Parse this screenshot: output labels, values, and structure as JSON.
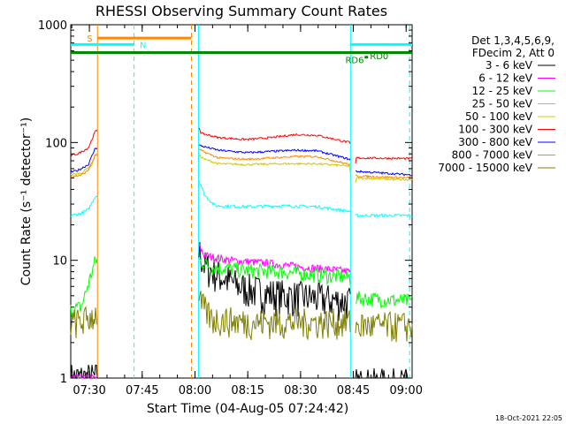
{
  "chart_data": {
    "type": "line",
    "title": "RHESSI Observing Summary Count Rates",
    "xlabel": "Start Time (04-Aug-05 07:24:42)",
    "ylabel": "Count Rate (s⁻¹ detector⁻¹)",
    "yscale": "log",
    "ylim": [
      1,
      1000
    ],
    "xlim_minutes": [
      0,
      97
    ],
    "x_tick_labels": [
      "07:30",
      "07:45",
      "08:00",
      "08:15",
      "08:30",
      "08:45",
      "09:00"
    ],
    "x_tick_minutes": [
      5.3,
      20.3,
      35.3,
      50.3,
      65.3,
      80.3,
      95.3
    ],
    "y_tick_labels": [
      "1",
      "10",
      "100",
      "1000"
    ],
    "y_tick_values": [
      1,
      10,
      100,
      1000
    ],
    "legend_header": [
      "Det 1,3,4,5,6,9,",
      "FDecim 2, Att 0"
    ],
    "timestamp": "18-Oct-2021 22:05",
    "flags": [
      {
        "label": "S",
        "color": "#ff8800",
        "start": 7.6,
        "end": 34.3,
        "level": 770
      },
      {
        "label": "N",
        "color": "#00ffff",
        "start": 0,
        "end": 18.0,
        "level": 680
      },
      {
        "label": "",
        "color": "#00ffff",
        "start": 79.5,
        "end": 97,
        "level": 680
      },
      {
        "label": "RD6",
        "color": "#008800",
        "start": 0,
        "end": 97,
        "level": 580
      },
      {
        "label": "RD0",
        "color": "#008800",
        "start": 83.5,
        "end": 84.5,
        "level": 530
      }
    ],
    "vertical_lines": [
      {
        "minute": 7.6,
        "color": "#ff8800",
        "style": "solid"
      },
      {
        "minute": 18.0,
        "color": "#00ffff",
        "style": "dashed"
      },
      {
        "minute": 34.3,
        "color": "#ff8800",
        "style": "dashed"
      },
      {
        "minute": 36.3,
        "color": "#00ffff",
        "style": "solid"
      },
      {
        "minute": 79.5,
        "color": "#00ffff",
        "style": "solid"
      },
      {
        "minute": 96.3,
        "color": "#00ffff",
        "style": "dashed"
      }
    ],
    "gaps": [
      [
        7.6,
        36.3
      ],
      [
        79.5,
        80.8
      ]
    ],
    "series": [
      {
        "name": "3 - 6 keV",
        "color": "#000000",
        "points": [
          [
            0,
            1
          ],
          [
            1,
            1
          ],
          [
            7.5,
            1
          ],
          [
            36.5,
            12
          ],
          [
            38,
            9
          ],
          [
            42,
            7.5
          ],
          [
            48,
            6
          ],
          [
            55,
            5.3
          ],
          [
            62,
            5
          ],
          [
            70,
            4.8
          ],
          [
            75,
            4.6
          ],
          [
            79.3,
            4.5
          ],
          [
            80.9,
            0.9
          ],
          [
            97,
            0.9
          ]
        ],
        "noise": 0.35
      },
      {
        "name": "6 - 12 keV",
        "color": "#ff00ff",
        "points": [
          [
            0,
            1
          ],
          [
            1,
            1
          ],
          [
            7.5,
            1
          ],
          [
            36.5,
            13
          ],
          [
            38,
            11
          ],
          [
            45,
            10
          ],
          [
            55,
            9.5
          ],
          [
            65,
            8.8
          ],
          [
            75,
            8.3
          ],
          [
            79.3,
            8
          ],
          [
            80.9,
            6.5
          ]
        ],
        "noise": 0.08
      },
      {
        "name": "12 - 25 keV",
        "color": "#00ff00",
        "points": [
          [
            0,
            3.8
          ],
          [
            3,
            4
          ],
          [
            7,
            10
          ],
          [
            36.5,
            10
          ],
          [
            40,
            8.8
          ],
          [
            50,
            8.2
          ],
          [
            60,
            8
          ],
          [
            70,
            7.5
          ],
          [
            79.3,
            7.2
          ],
          [
            80.9,
            4.8
          ],
          [
            97,
            4.5
          ]
        ],
        "noise": 0.15
      },
      {
        "name": "25 - 50 keV",
        "color": "#00ffff",
        "points": [
          [
            0,
            24
          ],
          [
            3,
            25
          ],
          [
            5,
            27
          ],
          [
            7,
            35
          ],
          [
            36.5,
            48
          ],
          [
            38,
            36
          ],
          [
            41,
            29
          ],
          [
            50,
            28.5
          ],
          [
            60,
            29
          ],
          [
            70,
            28.5
          ],
          [
            79.3,
            26
          ],
          [
            80.9,
            24
          ],
          [
            97,
            24
          ]
        ],
        "noise": 0.03
      },
      {
        "name": "50 - 100 keV",
        "color": "#cccc00",
        "points": [
          [
            0,
            53
          ],
          [
            3,
            55
          ],
          [
            6,
            65
          ],
          [
            7,
            80
          ],
          [
            36.5,
            78
          ],
          [
            38,
            72
          ],
          [
            42,
            66
          ],
          [
            50,
            65
          ],
          [
            60,
            66
          ],
          [
            70,
            66
          ],
          [
            79.3,
            63
          ],
          [
            80.3,
            20
          ],
          [
            81,
            50
          ],
          [
            97,
            48
          ]
        ],
        "noise": 0.02
      },
      {
        "name": "100 - 300 keV",
        "color": "#ff0000",
        "points": [
          [
            0,
            78
          ],
          [
            2,
            80
          ],
          [
            5,
            90
          ],
          [
            7,
            125
          ],
          [
            36.5,
            135
          ],
          [
            37,
            120
          ],
          [
            42,
            110
          ],
          [
            50,
            106
          ],
          [
            57,
            110
          ],
          [
            64,
            117
          ],
          [
            70,
            115
          ],
          [
            79.3,
            100
          ],
          [
            80.1,
            80
          ],
          [
            80.3,
            28
          ],
          [
            81,
            74
          ],
          [
            97,
            73
          ]
        ],
        "noise": 0.02
      },
      {
        "name": "300 - 800 keV",
        "color": "#0000ff",
        "points": [
          [
            0,
            56
          ],
          [
            2,
            58
          ],
          [
            5,
            65
          ],
          [
            7,
            90
          ],
          [
            36.5,
            95
          ],
          [
            38,
            92
          ],
          [
            42,
            86
          ],
          [
            50,
            82
          ],
          [
            57,
            84
          ],
          [
            64,
            86
          ],
          [
            70,
            85
          ],
          [
            79.3,
            72
          ],
          [
            80.3,
            60
          ],
          [
            81,
            57
          ],
          [
            97,
            53
          ]
        ],
        "noise": 0.02
      },
      {
        "name": "800 - 7000 keV",
        "color": "#ff8800",
        "points": [
          [
            0,
            51
          ],
          [
            3,
            53
          ],
          [
            5,
            58
          ],
          [
            7,
            78
          ],
          [
            36.5,
            87
          ],
          [
            38,
            83
          ],
          [
            42,
            74
          ],
          [
            50,
            72
          ],
          [
            57,
            74
          ],
          [
            64,
            76
          ],
          [
            70,
            76
          ],
          [
            79.3,
            65
          ],
          [
            80.3,
            55
          ],
          [
            81,
            52
          ],
          [
            97,
            50
          ]
        ],
        "noise": 0.02
      },
      {
        "name": "7000 - 15000 keV",
        "color": "#808000",
        "points": [
          [
            0,
            3
          ],
          [
            3,
            3
          ],
          [
            7,
            3.5
          ],
          [
            36.5,
            4.5
          ],
          [
            40,
            3.2
          ],
          [
            50,
            3
          ],
          [
            60,
            3
          ],
          [
            70,
            3
          ],
          [
            79.3,
            3
          ],
          [
            80.9,
            2.8
          ],
          [
            97,
            2.8
          ]
        ],
        "noise": 0.3
      }
    ]
  }
}
